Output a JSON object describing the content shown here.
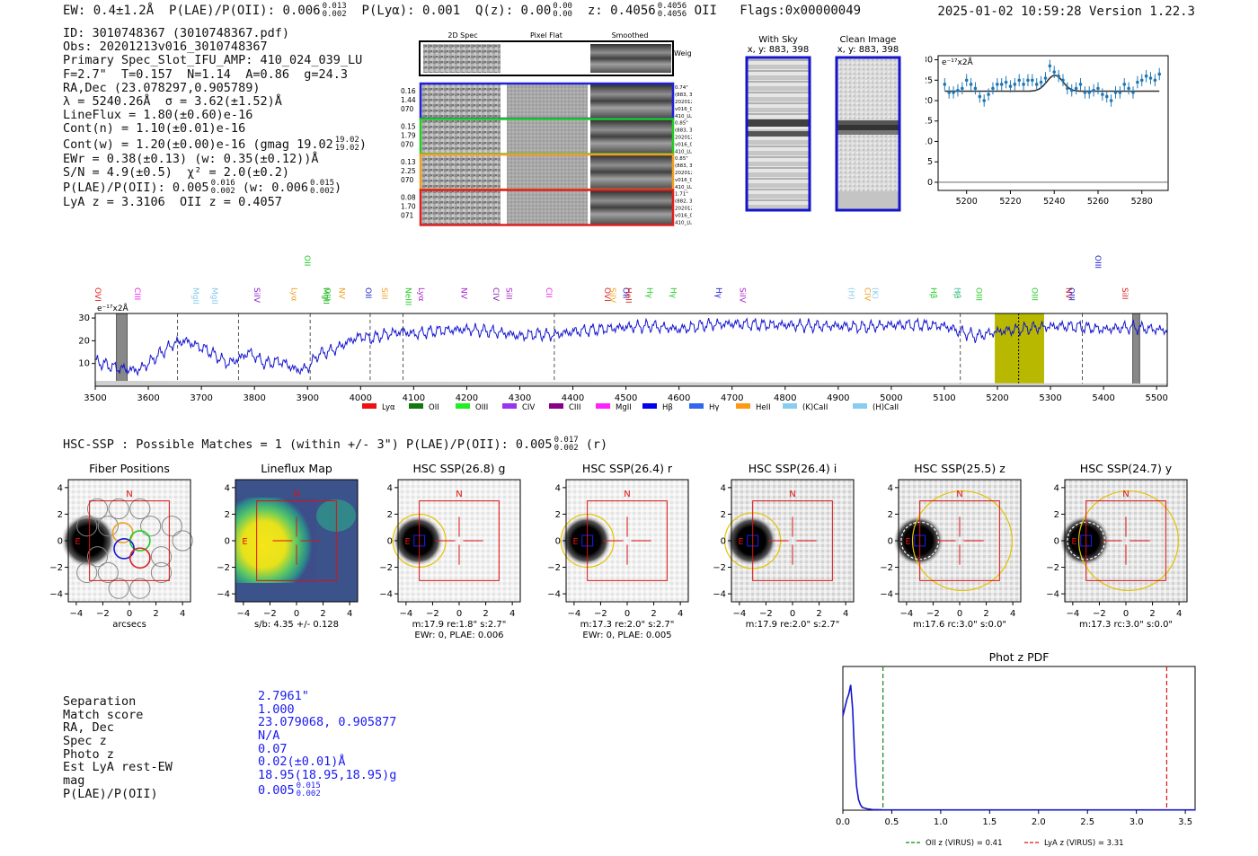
{
  "header": {
    "ew": "EW: 0.4±1.2Å",
    "plae_label": "P(LAE)/P(OII): 0.006",
    "plae_hi": "0.013",
    "plae_lo": "0.002",
    "plya": "P(Lyα): 0.001",
    "qz_label": "Q(z): 0.00",
    "qz_hi": "0.00",
    "qz_lo": "0.00",
    "z_label": "z: 0.4056",
    "z_hi": "0.4056",
    "z_lo": "0.4056",
    "z_line": "OII",
    "flags": "Flags:0x00000049",
    "datetime": "2025-01-02 10:59:28",
    "version": "Version 1.22.3"
  },
  "info": {
    "id": "ID: 3010748367 (3010748367.pdf)",
    "obs": "Obs: 20201213v016_3010748367",
    "primary": "Primary Spec_Slot_IFU_AMP: 410_024_039_LU",
    "fit": "F=2.7\"  T=0.157  N=1.14  A=0.86  g=24.3",
    "radec": "RA,Dec (23.078297,0.905789)",
    "lambda": "λ = 5240.26Å  σ = 3.62(±1.52)Å",
    "lineflux": "LineFlux = 1.80(±0.60)e-16",
    "contn": "Cont(n) = 1.10(±0.01)e-16",
    "contw": "Cont(w) = 1.20(±0.00)e-16 (gmag 19.02",
    "contw_hi": "19.02",
    "contw_lo": "19.02",
    "contw_end": ")",
    "ewr": "EWr = 0.38(±0.13) (w: 0.35(±0.12))Å",
    "sn": "S/N = 4.9(±0.5)  χ² = 2.0(±0.2)",
    "plae": "P(LAE)/P(OII): 0.005",
    "plae_hi": "0.016",
    "plae_lo": "0.002",
    "plae_w": "(w: 0.006",
    "plae_w_hi": "0.015",
    "plae_w_lo": "0.002",
    "plae_end": ")",
    "lyaz": "LyA z = 3.3106  OII z = 0.4057"
  },
  "spec2d": {
    "col_labels": [
      "2D Spec",
      "Pixel Flat",
      "Smoothed"
    ],
    "weighted": "Weighted Sum",
    "fibers": [
      {
        "color": "#2020d8",
        "left": [
          "0.16",
          "1.44",
          "070"
        ],
        "right": [
          "0.74\"",
          "(883, 398)",
          "20201213",
          "v016_02",
          "410_LU_043"
        ]
      },
      {
        "color": "#22cc22",
        "left": [
          "0.15",
          "1.79",
          "070"
        ],
        "right": [
          "0.85\"",
          "(883, 398)",
          "20201213",
          "v016_03",
          "410_LU_043"
        ]
      },
      {
        "color": "#f0a020",
        "left": [
          "0.13",
          "2.25",
          "070"
        ],
        "right": [
          "0.85\"",
          "(883, 398)",
          "20201213",
          "v016_01",
          "410_LU_043"
        ]
      },
      {
        "color": "#dd2020",
        "left": [
          "0.08",
          "1.70",
          "071"
        ],
        "right": [
          "1.71\"",
          "(882, 389)",
          "20201213",
          "v016_01",
          "410_LU_042"
        ]
      }
    ]
  },
  "cutouts": {
    "sky_title": "With Sky",
    "sky_coords": "x, y: 883, 398",
    "clean_title": "Clean Image",
    "clean_coords": "x, y: 883, 398"
  },
  "hsc": {
    "heading": "HSC-SSP : Possible Matches = 1 (within +/- 3\")  P(LAE)/P(OII): 0.005",
    "heading_hi": "0.017",
    "heading_lo": "0.002",
    "heading_end": "(r)",
    "panels": [
      {
        "title": "Fiber Positions",
        "cap1": "arcsecs",
        "cap2": ""
      },
      {
        "title": "Lineflux Map",
        "cap1": "s/b: 4.35 +/- 0.128",
        "cap2": ""
      },
      {
        "title": "HSC SSP(26.8) g",
        "cap1": "m:17.9  re:1.8\"  s:2.7\"",
        "cap2": "EWr: 0, PLAE: 0.006"
      },
      {
        "title": "HSC SSP(26.4) r",
        "cap1": "m:17.3  re:2.0\"  s:2.7\"",
        "cap2": "EWr: 0, PLAE: 0.005"
      },
      {
        "title": "HSC SSP(26.4) i",
        "cap1": "m:17.9  re:2.0\"  s:2.7\"",
        "cap2": ""
      },
      {
        "title": "HSC SSP(25.5) z",
        "cap1": "m:17.6  rc:3.0\"  s:0.0\"",
        "cap2": ""
      },
      {
        "title": "HSC SSP(24.7) y",
        "cap1": "m:17.3  rc:3.0\"  s:0.0\"",
        "cap2": ""
      }
    ],
    "north": "N",
    "east": "E"
  },
  "match": {
    "labels": [
      "Separation",
      "Match score",
      "RA, Dec",
      "Spec z",
      "Photo z",
      "Est LyA rest-EW",
      "mag",
      "P(LAE)/P(OII)"
    ],
    "values": [
      "2.7961\"",
      "1.000",
      "23.079068, 0.905877",
      "N/A",
      "0.07",
      "0.02(±0.01)Å",
      "18.95(18.95,18.95)g",
      "0.005"
    ],
    "plae_hi": "0.015",
    "plae_lo": "0.002"
  },
  "chart_data": [
    {
      "type": "scatter",
      "name": "line-fit",
      "title": "",
      "ylabel": "e⁻¹⁷x2Å",
      "xlim": [
        5187,
        5292
      ],
      "ylim": [
        -2,
        31
      ],
      "xticks": [
        5200,
        5220,
        5240,
        5260,
        5280
      ],
      "yticks": [
        0,
        5,
        10,
        15,
        20,
        25,
        30
      ],
      "x": [
        5190,
        5192,
        5194,
        5196,
        5198,
        5200,
        5202,
        5204,
        5206,
        5208,
        5210,
        5212,
        5214,
        5216,
        5218,
        5220,
        5222,
        5224,
        5226,
        5228,
        5230,
        5232,
        5234,
        5236,
        5238,
        5240,
        5242,
        5244,
        5246,
        5248,
        5250,
        5252,
        5254,
        5256,
        5258,
        5260,
        5262,
        5264,
        5266,
        5268,
        5270,
        5272,
        5274,
        5276,
        5278,
        5280,
        5282,
        5284,
        5286,
        5288
      ],
      "y": [
        24,
        22,
        22,
        22.5,
        23,
        25,
        24,
        23,
        21,
        20,
        21.5,
        23,
        24,
        24,
        24.5,
        23.5,
        24,
        25,
        24,
        25,
        25,
        24,
        24.5,
        25.5,
        28.5,
        27,
        26,
        25,
        23,
        22.5,
        23,
        24,
        22,
        22,
        22.5,
        23,
        21.5,
        21,
        20,
        22,
        22,
        24,
        23,
        22,
        24.5,
        25,
        26,
        25.5,
        25,
        26.5
      ],
      "yerr": 1.5,
      "fit": {
        "continuum": 22.3,
        "peak": 3.9,
        "center": 5240.26,
        "sigma": 3.62
      },
      "zero_line": 0
    },
    {
      "type": "line",
      "name": "full-spectrum",
      "ylabel": "e⁻¹⁷x2Å",
      "xlim": [
        3500,
        5520
      ],
      "ylim": [
        0,
        32
      ],
      "xticks": [
        3500,
        3600,
        3700,
        3800,
        3900,
        4000,
        4100,
        4200,
        4300,
        4400,
        4500,
        4600,
        4700,
        4800,
        4900,
        5000,
        5100,
        5200,
        5300,
        5400,
        5500
      ],
      "yticks": [
        10,
        20,
        30
      ],
      "series_color": "#1515d0",
      "knots_x": [
        3500,
        3540,
        3580,
        3600,
        3620,
        3650,
        3670,
        3690,
        3710,
        3730,
        3750,
        3770,
        3790,
        3820,
        3850,
        3880,
        3900,
        3920,
        3950,
        3980,
        4000,
        4020,
        4050,
        4080,
        4100,
        4150,
        4200,
        4250,
        4280,
        4300,
        4330,
        4360,
        4400,
        4450,
        4500,
        4550,
        4600,
        4650,
        4700,
        4750,
        4800,
        4850,
        4900,
        4950,
        5000,
        5050,
        5100,
        5130,
        5160,
        5200,
        5240,
        5280,
        5320,
        5360,
        5400,
        5450,
        5500,
        5520
      ],
      "knots_y": [
        11,
        8,
        7,
        10,
        14,
        19,
        20,
        18,
        16,
        13,
        10,
        12,
        15,
        10,
        11,
        7,
        8,
        14,
        16,
        20,
        22,
        21,
        23,
        24,
        23,
        24.5,
        25,
        24,
        23,
        22,
        23,
        22.5,
        24,
        25,
        26,
        26.5,
        25,
        27,
        27.5,
        27,
        27,
        26.5,
        26.5,
        26,
        27,
        27,
        26.5,
        24,
        22,
        24,
        25,
        26,
        26.5,
        26,
        25,
        26,
        25,
        24.5
      ],
      "band": {
        "x0": 5195,
        "x1": 5288,
        "color": "#b8b800"
      },
      "center_line": 5240,
      "masks": [
        {
          "x0": 3540,
          "x1": 3560
        },
        {
          "x0": 5455,
          "x1": 5468
        }
      ],
      "dashed_lines": [
        3655,
        3770,
        3905,
        4018,
        4080,
        4365,
        5130,
        5360
      ],
      "lines": [
        {
          "label": "OVI",
          "x": 3505,
          "color": "#dd2020"
        },
        {
          "label": "CIII",
          "x": 3580,
          "color": "#ee22ee"
        },
        {
          "label": "MgII",
          "x": 3690,
          "color": "#88ccee"
        },
        {
          "label": "MgII",
          "x": 3725,
          "color": "#88ccee"
        },
        {
          "label": "SiIV",
          "x": 3805,
          "color": "#8822cc"
        },
        {
          "label": "Lyα",
          "x": 3875,
          "color": "#f0a020"
        },
        {
          "label": "OII",
          "x": 3900,
          "color": "#22cc22"
        },
        {
          "label": "MgII",
          "x": 3935,
          "color": "#22aa22"
        },
        {
          "label": "OIII",
          "x": 3938,
          "color": "#22cc22"
        },
        {
          "label": "NV",
          "x": 3965,
          "color": "#f0a020"
        },
        {
          "label": "OII",
          "x": 4015,
          "color": "#1a1ad0"
        },
        {
          "label": "SiII",
          "x": 4045,
          "color": "#f0a020"
        },
        {
          "label": "NeIII",
          "x": 4090,
          "color": "#22cc22"
        },
        {
          "label": "Lyα",
          "x": 4115,
          "color": "#aa22cc"
        },
        {
          "label": "NV",
          "x": 4195,
          "color": "#aa22cc"
        },
        {
          "label": "CIV",
          "x": 4255,
          "color": "#8822aa"
        },
        {
          "label": "SiII",
          "x": 4280,
          "color": "#aa22cc"
        },
        {
          "label": "CII",
          "x": 4355,
          "color": "#ee22ee"
        },
        {
          "label": "OVI",
          "x": 4465,
          "color": "#dd2020"
        },
        {
          "label": "SiIV",
          "x": 4475,
          "color": "#f0a020"
        },
        {
          "label": "OII",
          "x": 4500,
          "color": "#1a1ad0"
        },
        {
          "label": "HeII",
          "x": 4505,
          "color": "#dd2020"
        },
        {
          "label": "Hγ",
          "x": 4545,
          "color": "#22cc22"
        },
        {
          "label": "Hγ",
          "x": 4590,
          "color": "#22cc22"
        },
        {
          "label": "Hγ",
          "x": 4675,
          "color": "#1a1ad0"
        },
        {
          "label": "SiIV",
          "x": 4720,
          "color": "#aa22cc"
        },
        {
          "label": "(H)",
          "x": 4925,
          "color": "#88ccee"
        },
        {
          "label": "CIV",
          "x": 4955,
          "color": "#f0a020"
        },
        {
          "label": "(K)",
          "x": 4970,
          "color": "#88ccee"
        },
        {
          "label": "Hβ",
          "x": 5080,
          "color": "#22cc22"
        },
        {
          "label": "Hβ",
          "x": 5125,
          "color": "#22cc22"
        },
        {
          "label": "(K)",
          "x": 5125,
          "color": "#88ccee"
        },
        {
          "label": "OIII",
          "x": 5165,
          "color": "#22cc22"
        },
        {
          "label": "OIII",
          "x": 5270,
          "color": "#22cc22"
        },
        {
          "label": "NV",
          "x": 5335,
          "color": "#dd2020"
        },
        {
          "label": "OIII",
          "x": 5340,
          "color": "#1a1ad0"
        },
        {
          "label": "OIII",
          "x": 5390,
          "color": "#1a1ad0"
        },
        {
          "label": "SiII",
          "x": 5440,
          "color": "#dd2020"
        }
      ],
      "legend": [
        {
          "label": "Lyα",
          "color": "#ee1111"
        },
        {
          "label": "OII",
          "color": "#117711"
        },
        {
          "label": "OIII",
          "color": "#22ee22"
        },
        {
          "label": "CIV",
          "color": "#9933ee"
        },
        {
          "label": "CIII",
          "color": "#880088"
        },
        {
          "label": "MgII",
          "color": "#ff22ff"
        },
        {
          "label": "Hβ",
          "color": "#0000ee"
        },
        {
          "label": "Hγ",
          "color": "#3366ee"
        },
        {
          "label": "HeII",
          "color": "#ff9911"
        },
        {
          "label": "(K)CaII",
          "color": "#88ccee"
        },
        {
          "label": "(H)CaII",
          "color": "#88ccee"
        }
      ]
    },
    {
      "type": "line",
      "name": "phot-z-pdf",
      "title": "Phot z PDF",
      "xlim": [
        0,
        3.6
      ],
      "ylim": [
        0,
        1
      ],
      "xticks": [
        0.0,
        0.5,
        1.0,
        1.5,
        2.0,
        2.5,
        3.0,
        3.5
      ],
      "x": [
        0,
        0.02,
        0.04,
        0.06,
        0.08,
        0.1,
        0.12,
        0.14,
        0.16,
        0.18,
        0.2,
        0.25,
        0.3,
        0.4,
        0.6,
        1.0,
        2.0,
        3.6
      ],
      "y": [
        0.7,
        0.76,
        0.82,
        0.86,
        0.93,
        0.75,
        0.4,
        0.18,
        0.08,
        0.04,
        0.02,
        0.01,
        0.005,
        0.003,
        0.002,
        0.002,
        0.002,
        0.002
      ],
      "vlines": [
        {
          "x": 0.41,
          "color": "#118811",
          "label": "OII z (VIRUS) = 0.41"
        },
        {
          "x": 3.31,
          "color": "#dd1111",
          "label": "LyA z (VIRUS) = 3.31"
        }
      ]
    }
  ]
}
